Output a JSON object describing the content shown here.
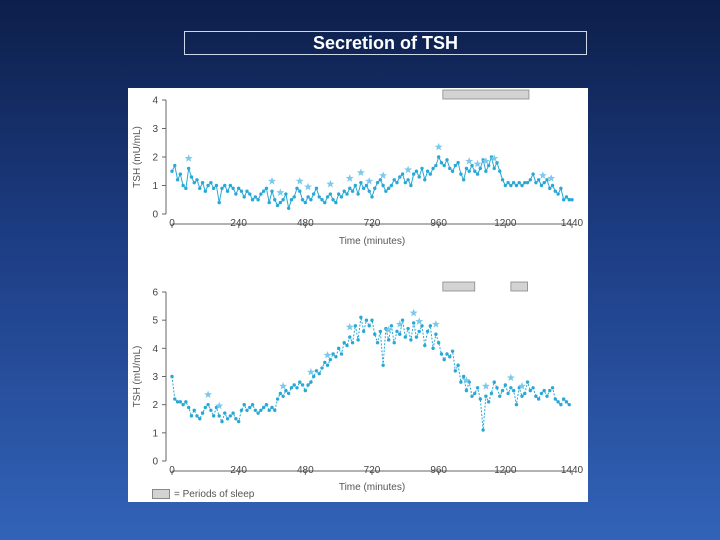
{
  "slide": {
    "title": "Secretion of TSH"
  },
  "colors": {
    "series": "#29a8d6",
    "star": "#7cc9ea",
    "axis": "#666666",
    "sleep_bar": "#d3d3d3"
  },
  "legend": {
    "swatch_label": "= Periods of sleep"
  },
  "chart_data": [
    {
      "type": "line",
      "title": "",
      "xlabel": "Time (minutes)",
      "ylabel": "TSH (mU/mL)",
      "xlim": [
        0,
        1440
      ],
      "ylim": [
        0,
        4
      ],
      "xticks": [
        0,
        240,
        480,
        720,
        960,
        1200,
        1440
      ],
      "yticks": [
        0,
        1,
        2,
        3,
        4
      ],
      "sleep_periods": [
        [
          975,
          1285
        ]
      ],
      "series": [
        {
          "name": "TSH",
          "x": [
            0,
            10,
            20,
            30,
            40,
            50,
            60,
            70,
            80,
            90,
            100,
            110,
            120,
            130,
            140,
            150,
            160,
            170,
            180,
            190,
            200,
            210,
            220,
            230,
            240,
            250,
            260,
            270,
            280,
            290,
            300,
            310,
            320,
            330,
            340,
            350,
            360,
            370,
            380,
            390,
            400,
            410,
            420,
            430,
            440,
            450,
            460,
            470,
            480,
            490,
            500,
            510,
            520,
            530,
            540,
            550,
            560,
            570,
            580,
            590,
            600,
            610,
            620,
            630,
            640,
            650,
            660,
            670,
            680,
            690,
            700,
            710,
            720,
            730,
            740,
            750,
            760,
            770,
            780,
            790,
            800,
            810,
            820,
            830,
            840,
            850,
            860,
            870,
            880,
            890,
            900,
            910,
            920,
            930,
            940,
            950,
            960,
            970,
            980,
            990,
            1000,
            1010,
            1020,
            1030,
            1040,
            1050,
            1060,
            1070,
            1080,
            1090,
            1100,
            1110,
            1120,
            1130,
            1140,
            1150,
            1160,
            1170,
            1180,
            1190,
            1200,
            1210,
            1220,
            1230,
            1240,
            1250,
            1260,
            1270,
            1280,
            1290,
            1300,
            1310,
            1320,
            1330,
            1340,
            1350,
            1360,
            1370,
            1380,
            1390,
            1400,
            1410,
            1420,
            1430,
            1440
          ],
          "y": [
            1.5,
            1.7,
            1.2,
            1.4,
            1.0,
            0.9,
            1.6,
            1.3,
            1.1,
            1.2,
            0.9,
            1.1,
            0.8,
            1.0,
            1.1,
            0.9,
            1.0,
            0.4,
            0.9,
            1.0,
            0.8,
            1.0,
            0.9,
            0.7,
            0.9,
            0.8,
            0.6,
            0.8,
            0.7,
            0.5,
            0.6,
            0.5,
            0.7,
            0.8,
            0.9,
            0.4,
            0.8,
            0.5,
            0.3,
            0.4,
            0.5,
            0.7,
            0.2,
            0.5,
            0.6,
            0.9,
            0.8,
            0.5,
            0.4,
            0.6,
            0.5,
            0.7,
            0.9,
            0.6,
            0.5,
            0.4,
            0.6,
            0.7,
            0.5,
            0.4,
            0.7,
            0.6,
            0.8,
            0.7,
            0.9,
            0.8,
            1.0,
            0.7,
            1.1,
            0.9,
            1.0,
            0.8,
            0.6,
            0.9,
            1.1,
            1.2,
            1.0,
            0.8,
            0.9,
            1.0,
            1.2,
            1.1,
            1.3,
            1.4,
            1.1,
            1.2,
            1.0,
            1.4,
            1.5,
            1.3,
            1.6,
            1.2,
            1.5,
            1.4,
            1.6,
            1.7,
            2.0,
            1.8,
            1.7,
            1.9,
            1.6,
            1.5,
            1.7,
            1.8,
            1.4,
            1.2,
            1.6,
            1.5,
            1.7,
            1.5,
            1.4,
            1.6,
            1.9,
            1.5,
            1.7,
            2.0,
            1.6,
            1.8,
            1.5,
            1.2,
            1.0,
            1.1,
            1.0,
            1.1,
            1.0,
            1.1,
            1.0,
            1.1,
            1.1,
            1.2,
            1.4,
            1.1,
            1.2,
            1.0,
            1.1,
            1.2,
            0.9,
            1.0,
            0.8,
            0.7,
            0.9,
            0.5,
            0.6,
            0.5,
            0.5
          ]
        }
      ],
      "stars_at": [
        60,
        360,
        390,
        460,
        490,
        570,
        640,
        680,
        710,
        760,
        850,
        960,
        1070,
        1100,
        1130,
        1160,
        1335,
        1365
      ]
    },
    {
      "type": "line",
      "title": "",
      "xlabel": "Time (minutes)",
      "ylabel": "TSH (mU/mL)",
      "xlim": [
        0,
        1440
      ],
      "ylim": [
        0,
        6
      ],
      "xticks": [
        0,
        240,
        480,
        720,
        960,
        1200,
        1440
      ],
      "yticks": [
        0,
        1,
        2,
        3,
        4,
        5,
        6
      ],
      "sleep_periods": [
        [
          975,
          1090
        ],
        [
          1220,
          1280
        ]
      ],
      "series": [
        {
          "name": "TSH",
          "x": [
            0,
            10,
            20,
            30,
            40,
            50,
            60,
            70,
            80,
            90,
            100,
            110,
            120,
            130,
            140,
            150,
            160,
            170,
            180,
            190,
            200,
            210,
            220,
            230,
            240,
            250,
            260,
            270,
            280,
            290,
            300,
            310,
            320,
            330,
            340,
            350,
            360,
            370,
            380,
            390,
            400,
            410,
            420,
            430,
            440,
            450,
            460,
            470,
            480,
            490,
            500,
            510,
            520,
            530,
            540,
            550,
            560,
            570,
            580,
            590,
            600,
            610,
            620,
            630,
            640,
            650,
            660,
            670,
            680,
            690,
            700,
            710,
            720,
            730,
            740,
            750,
            760,
            770,
            780,
            790,
            800,
            810,
            820,
            830,
            840,
            850,
            860,
            870,
            880,
            890,
            900,
            910,
            920,
            930,
            940,
            950,
            960,
            970,
            980,
            990,
            1000,
            1010,
            1020,
            1030,
            1040,
            1050,
            1060,
            1070,
            1080,
            1090,
            1100,
            1110,
            1120,
            1130,
            1140,
            1150,
            1160,
            1170,
            1180,
            1190,
            1200,
            1210,
            1220,
            1230,
            1240,
            1250,
            1260,
            1270,
            1280,
            1290,
            1300,
            1310,
            1320,
            1330,
            1340,
            1350,
            1360,
            1370,
            1380,
            1390,
            1400,
            1410,
            1420,
            1430
          ],
          "y": [
            3.0,
            2.2,
            2.1,
            2.1,
            2.0,
            2.1,
            1.9,
            1.6,
            1.8,
            1.6,
            1.5,
            1.7,
            1.9,
            2.0,
            1.8,
            1.6,
            1.9,
            1.6,
            1.4,
            1.7,
            1.5,
            1.6,
            1.7,
            1.5,
            1.4,
            1.8,
            2.0,
            1.8,
            1.9,
            2.0,
            1.8,
            1.7,
            1.8,
            1.9,
            2.0,
            1.8,
            1.9,
            1.8,
            2.2,
            2.4,
            2.3,
            2.5,
            2.4,
            2.6,
            2.7,
            2.6,
            2.8,
            2.7,
            2.5,
            2.7,
            2.8,
            3.0,
            3.2,
            3.1,
            3.3,
            3.5,
            3.4,
            3.6,
            3.8,
            3.7,
            4.0,
            3.8,
            4.2,
            4.1,
            4.4,
            4.2,
            4.8,
            4.3,
            5.1,
            4.6,
            5.0,
            4.8,
            5.0,
            4.5,
            4.2,
            4.6,
            3.4,
            4.7,
            4.3,
            4.8,
            4.2,
            4.6,
            4.5,
            5.0,
            4.4,
            4.7,
            4.3,
            4.9,
            4.4,
            4.6,
            4.8,
            4.1,
            4.6,
            4.8,
            4.0,
            4.5,
            4.2,
            3.8,
            3.6,
            3.8,
            3.7,
            3.9,
            3.2,
            3.4,
            2.8,
            3.0,
            2.5,
            2.8,
            2.3,
            2.4,
            2.6,
            2.2,
            1.1,
            2.3,
            2.1,
            2.4,
            2.8,
            2.6,
            2.3,
            2.5,
            2.7,
            2.4,
            2.6,
            2.5,
            2.0,
            2.6,
            2.3,
            2.4,
            2.8,
            2.5,
            2.6,
            2.3,
            2.2,
            2.4,
            2.5,
            2.3,
            2.5,
            2.6,
            2.2,
            2.1,
            2.0,
            2.2,
            2.1,
            2.0
          ],
          "gap_dashed": true
        }
      ],
      "stars_at": [
        130,
        170,
        400,
        500,
        560,
        640,
        780,
        820,
        870,
        890,
        950,
        1060,
        1130,
        1220,
        1260
      ]
    }
  ]
}
